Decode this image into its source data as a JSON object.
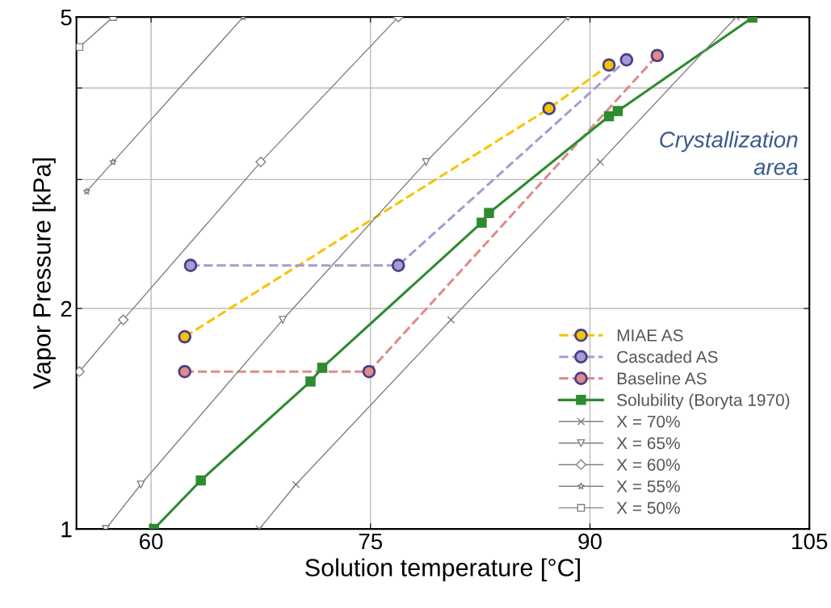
{
  "chart_data": {
    "type": "line",
    "xlabel": "Solution temperature [°C]",
    "ylabel": "Vapor Pressure [kPa]",
    "xlim": [
      54.9,
      105
    ],
    "xticks": [
      60,
      75,
      90,
      105
    ],
    "ylim": [
      1,
      5
    ],
    "log": "y",
    "yticks": [
      1,
      2,
      {
        "value": 3,
        "label": null
      },
      {
        "value": 4,
        "label": null
      },
      5
    ],
    "grid": true,
    "legend": "bottom right",
    "annotations": [
      "Crystallization\narea"
    ],
    "series": [
      {
        "name": "MIAE AS",
        "color": "#f5c400",
        "x": [
          62.3,
          87.2,
          91.3
        ],
        "values": [
          1.83,
          3.75,
          4.3
        ],
        "marker": "circle",
        "line_style": "dashed"
      },
      {
        "name": "Cascaded AS",
        "color": "#a99bd0",
        "x": [
          62.7,
          76.9,
          92.5
        ],
        "values": [
          2.29,
          2.29,
          4.37
        ],
        "marker": "circle",
        "line_style": "dashed"
      },
      {
        "name": "Baseline AS",
        "color": "#e08a8a",
        "x": [
          62.3,
          74.9,
          94.6
        ],
        "values": [
          1.64,
          1.64,
          4.43
        ],
        "marker": "circle",
        "line_style": "dashed"
      },
      {
        "name": "Solubility (Boryta 1970)",
        "color": "#2e8b2e",
        "x": [
          60.2,
          63.4,
          70.9,
          71.7,
          82.6,
          83.1,
          91.3,
          91.9,
          101.1
        ],
        "values": [
          1.0,
          1.165,
          1.59,
          1.66,
          2.62,
          2.7,
          3.66,
          3.72,
          4.99
        ],
        "marker": "square",
        "line_style": "solid"
      },
      {
        "name": "X = 70%",
        "color": "#808080",
        "x": [
          67.4,
          69.9,
          80.5,
          90.7,
          100.0
        ],
        "values": [
          1.0,
          1.15,
          1.93,
          3.17,
          5.0
        ],
        "marker": "cross",
        "line_style": "solid"
      },
      {
        "name": "X = 65%",
        "color": "#808080",
        "x": [
          56.9,
          59.3,
          69.0,
          78.8,
          88.5
        ],
        "values": [
          1.0,
          1.15,
          1.93,
          3.17,
          5.0
        ],
        "marker": "triangle",
        "line_style": "solid"
      },
      {
        "name": "X = 60%",
        "color": "#808080",
        "x": [
          55.1,
          58.1,
          67.5,
          76.9
        ],
        "values": [
          1.64,
          1.93,
          3.17,
          5.0
        ],
        "marker": "diamond",
        "line_style": "solid"
      },
      {
        "name": "X = 55%",
        "color": "#808080",
        "x": [
          55.6,
          57.4,
          66.3
        ],
        "values": [
          2.89,
          3.17,
          5.0
        ],
        "marker": "star",
        "line_style": "solid"
      },
      {
        "name": "X = 50%",
        "color": "#808080",
        "x": [
          55.1,
          57.4
        ],
        "values": [
          4.55,
          5.0
        ],
        "marker": "square",
        "line_style": "solid"
      }
    ]
  }
}
